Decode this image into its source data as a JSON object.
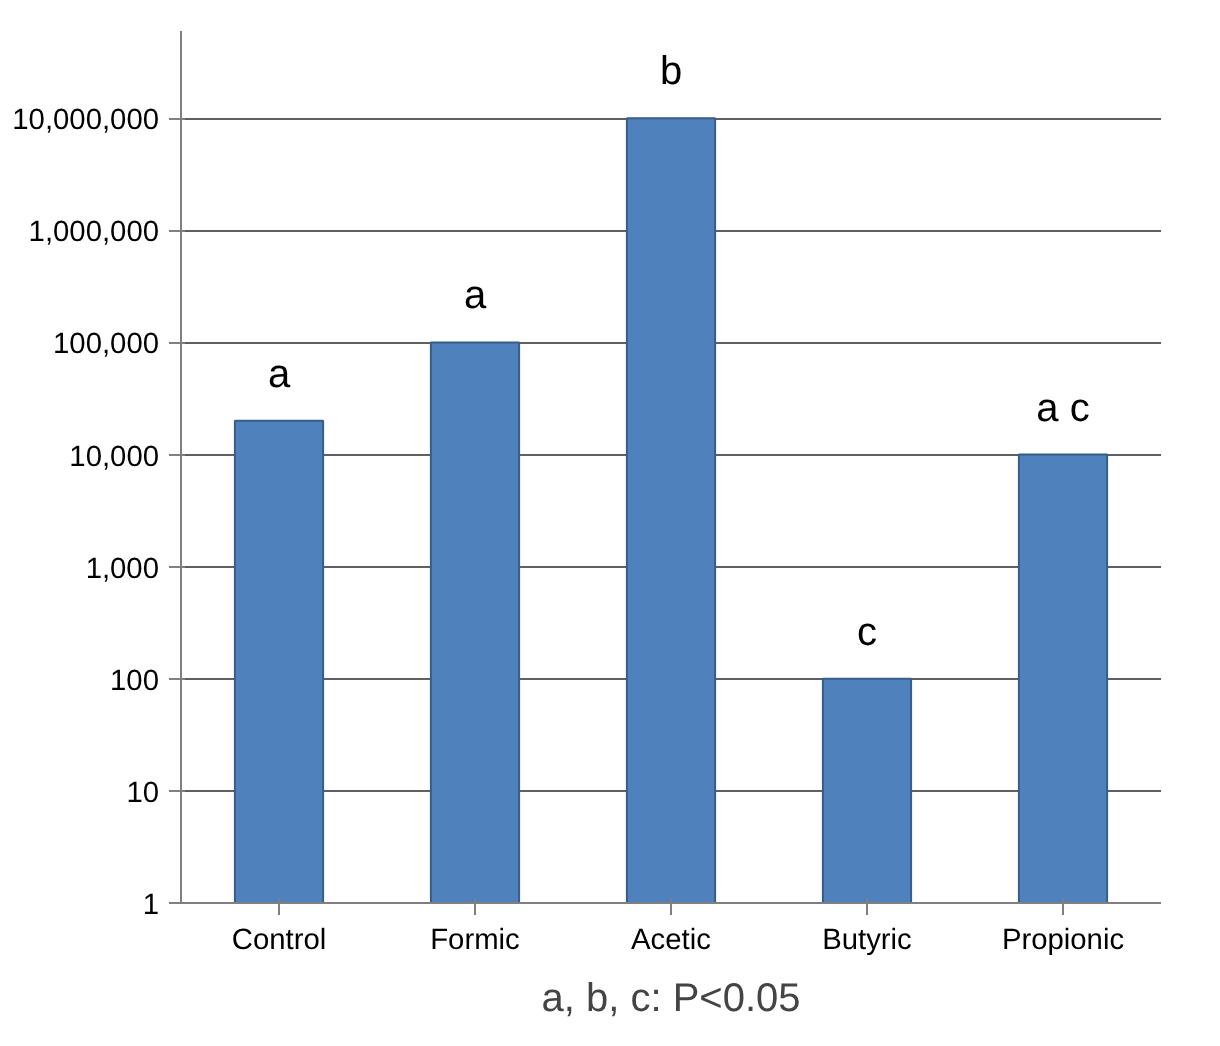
{
  "chart_data": {
    "type": "bar",
    "categories": [
      "Control",
      "Formic",
      "Acetic",
      "Butyric",
      "Propionic"
    ],
    "values": [
      20000,
      100000,
      10000000,
      100,
      10000
    ],
    "color": "#4f81bd",
    "log": true,
    "ylim": [
      1,
      60000000
    ],
    "yticks": [
      {
        "value": 1,
        "label": "1"
      },
      {
        "value": 10,
        "label": "10"
      },
      {
        "value": 100,
        "label": "100"
      },
      {
        "value": 1000,
        "label": "1,000"
      },
      {
        "value": 10000,
        "label": "10,000"
      },
      {
        "value": 100000,
        "label": "100,000"
      },
      {
        "value": 1000000,
        "label": "1,000,000"
      },
      {
        "value": 10000000,
        "label": "10,000,000"
      }
    ],
    "grid": "y",
    "annotations": [
      {
        "text": "a",
        "x": "Control",
        "y": 20000
      },
      {
        "text": "a",
        "x": "Formic",
        "y": 100000
      },
      {
        "text": "b",
        "x": "Acetic",
        "y": 10000000
      },
      {
        "text": "c",
        "x": "Butyric",
        "y": 100
      },
      {
        "text": "a c",
        "x": "Propionic",
        "y": 10000
      },
      "a, b, c: P<0.05"
    ]
  }
}
